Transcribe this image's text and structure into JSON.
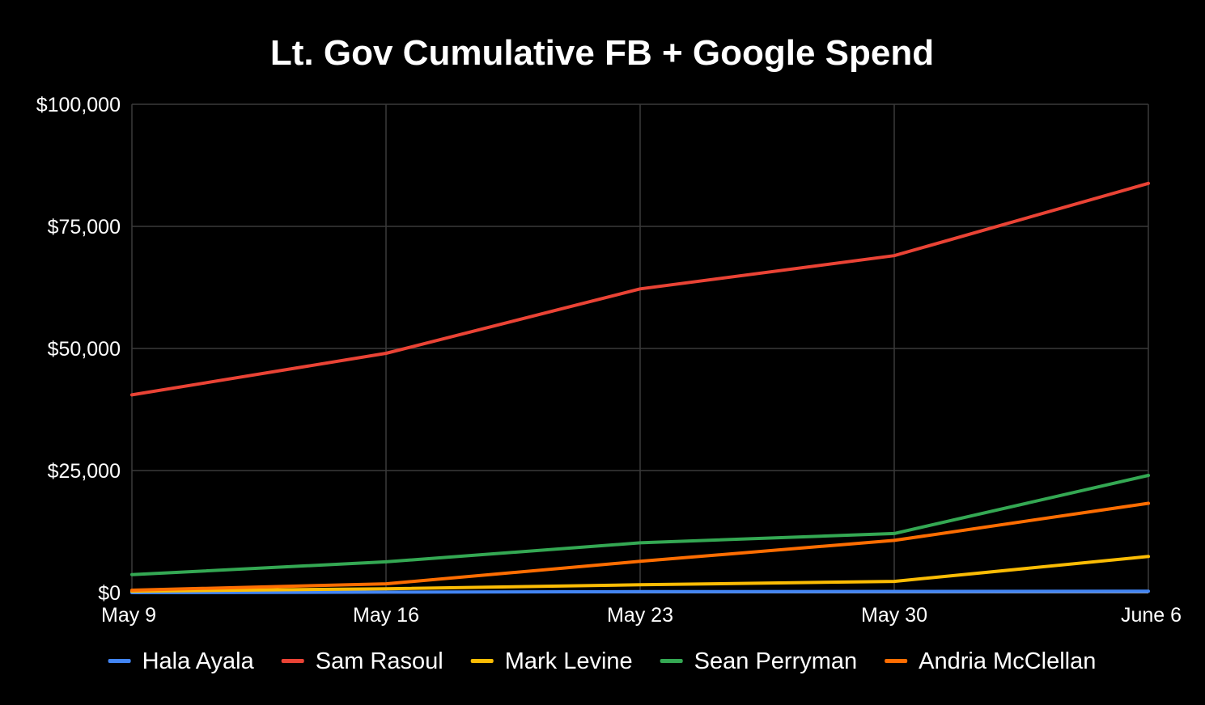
{
  "chart_data": {
    "type": "line",
    "title": "Lt. Gov Cumulative FB + Google Spend",
    "xlabel": "",
    "ylabel": "",
    "categories": [
      "May 9",
      "May 16",
      "May 23",
      "May 30",
      "June 6"
    ],
    "ylim": [
      0,
      100000
    ],
    "y_ticks": [
      0,
      25000,
      50000,
      75000,
      100000
    ],
    "y_tick_labels": [
      "$0",
      "$25,000",
      "$50,000",
      "$75,000",
      "$100,000"
    ],
    "grid": true,
    "legend_position": "bottom",
    "series": [
      {
        "name": "Hala Ayala",
        "color": "#4285f4",
        "values": [
          0,
          100,
          200,
          250,
          300
        ]
      },
      {
        "name": "Sam Rasoul",
        "color": "#ea4335",
        "values": [
          40500,
          49000,
          62200,
          69000,
          83800
        ]
      },
      {
        "name": "Mark Levine",
        "color": "#fbbc04",
        "values": [
          300,
          800,
          1600,
          2300,
          7400
        ]
      },
      {
        "name": "Sean Perryman",
        "color": "#34a853",
        "values": [
          3700,
          6300,
          10200,
          12100,
          24000
        ]
      },
      {
        "name": "Andria McClellan",
        "color": "#ff6d01",
        "values": [
          500,
          1800,
          6400,
          10700,
          18300
        ]
      }
    ]
  }
}
